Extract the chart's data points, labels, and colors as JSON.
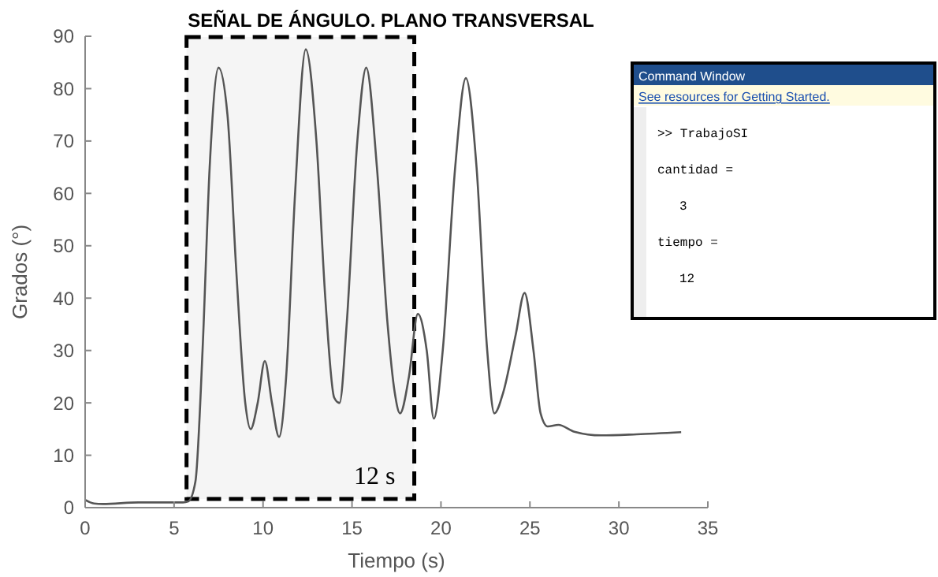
{
  "chart_data": {
    "type": "line",
    "title": "SEÑAL DE ÁNGULO. PLANO TRANSVERSAL",
    "xlabel": "Tiempo (s)",
    "ylabel": "Grados (°)",
    "xlim": [
      0,
      35
    ],
    "ylim": [
      0,
      90
    ],
    "xticks": [
      0,
      5,
      10,
      15,
      20,
      25,
      30,
      35
    ],
    "yticks": [
      0,
      10,
      20,
      30,
      40,
      50,
      60,
      70,
      80,
      90
    ],
    "grid": false,
    "series": [
      {
        "color": "#555555",
        "x": [
          0,
          0.5,
          1,
          3,
          5.5,
          5.8,
          6.2,
          6.6,
          7,
          7.5,
          8,
          8.5,
          9,
          9.3,
          9.7,
          10.1,
          10.5,
          10.9,
          11.3,
          11.8,
          12.4,
          13,
          13.5,
          14,
          14.3,
          14.7,
          15.3,
          15.8,
          16.4,
          17,
          17.4,
          17.7,
          18.2,
          18.7,
          19.2,
          19.6,
          20.1,
          20.8,
          21.4,
          22,
          22.6,
          23,
          23.5,
          24.2,
          24.7,
          25.2,
          25.6,
          26,
          26.6,
          27.5,
          29,
          31,
          33.5
        ],
        "values": [
          1.5,
          0.8,
          0.7,
          1,
          1,
          1.2,
          5,
          30,
          65,
          84,
          75,
          45,
          20,
          15,
          20,
          28,
          20,
          13.5,
          25,
          60,
          87.5,
          70,
          40,
          21,
          20,
          35,
          70,
          84,
          65,
          35,
          22,
          18,
          25,
          37,
          30,
          17,
          30,
          65,
          82,
          65,
          30,
          18,
          22,
          33,
          41,
          30,
          18,
          15.5,
          15.8,
          14.5,
          13.8,
          14,
          14.4
        ]
      }
    ],
    "bands": [
      {
        "axis": "x",
        "from": 5.7,
        "to": 18.5,
        "label": "12 s",
        "color": "#000000"
      }
    ],
    "annotations": [
      "Command Window",
      "See resources for Getting Started.",
      ">> TrabajoSI",
      "cantidad =",
      "3",
      "tiempo =",
      "12"
    ]
  }
}
